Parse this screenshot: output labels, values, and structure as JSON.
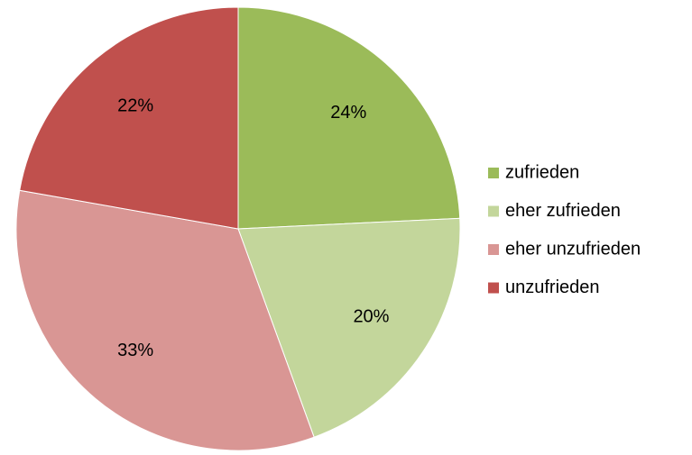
{
  "chart_data": {
    "type": "pie",
    "categories": [
      "zufrieden",
      "eher zufrieden",
      "eher unzufrieden",
      "unzufrieden"
    ],
    "values": [
      24,
      20,
      33,
      22
    ],
    "value_labels": [
      "24%",
      "20%",
      "33%",
      "22%"
    ],
    "colors": [
      "#9bbb59",
      "#c3d69b",
      "#d99694",
      "#c0504d"
    ],
    "legend": "right"
  }
}
